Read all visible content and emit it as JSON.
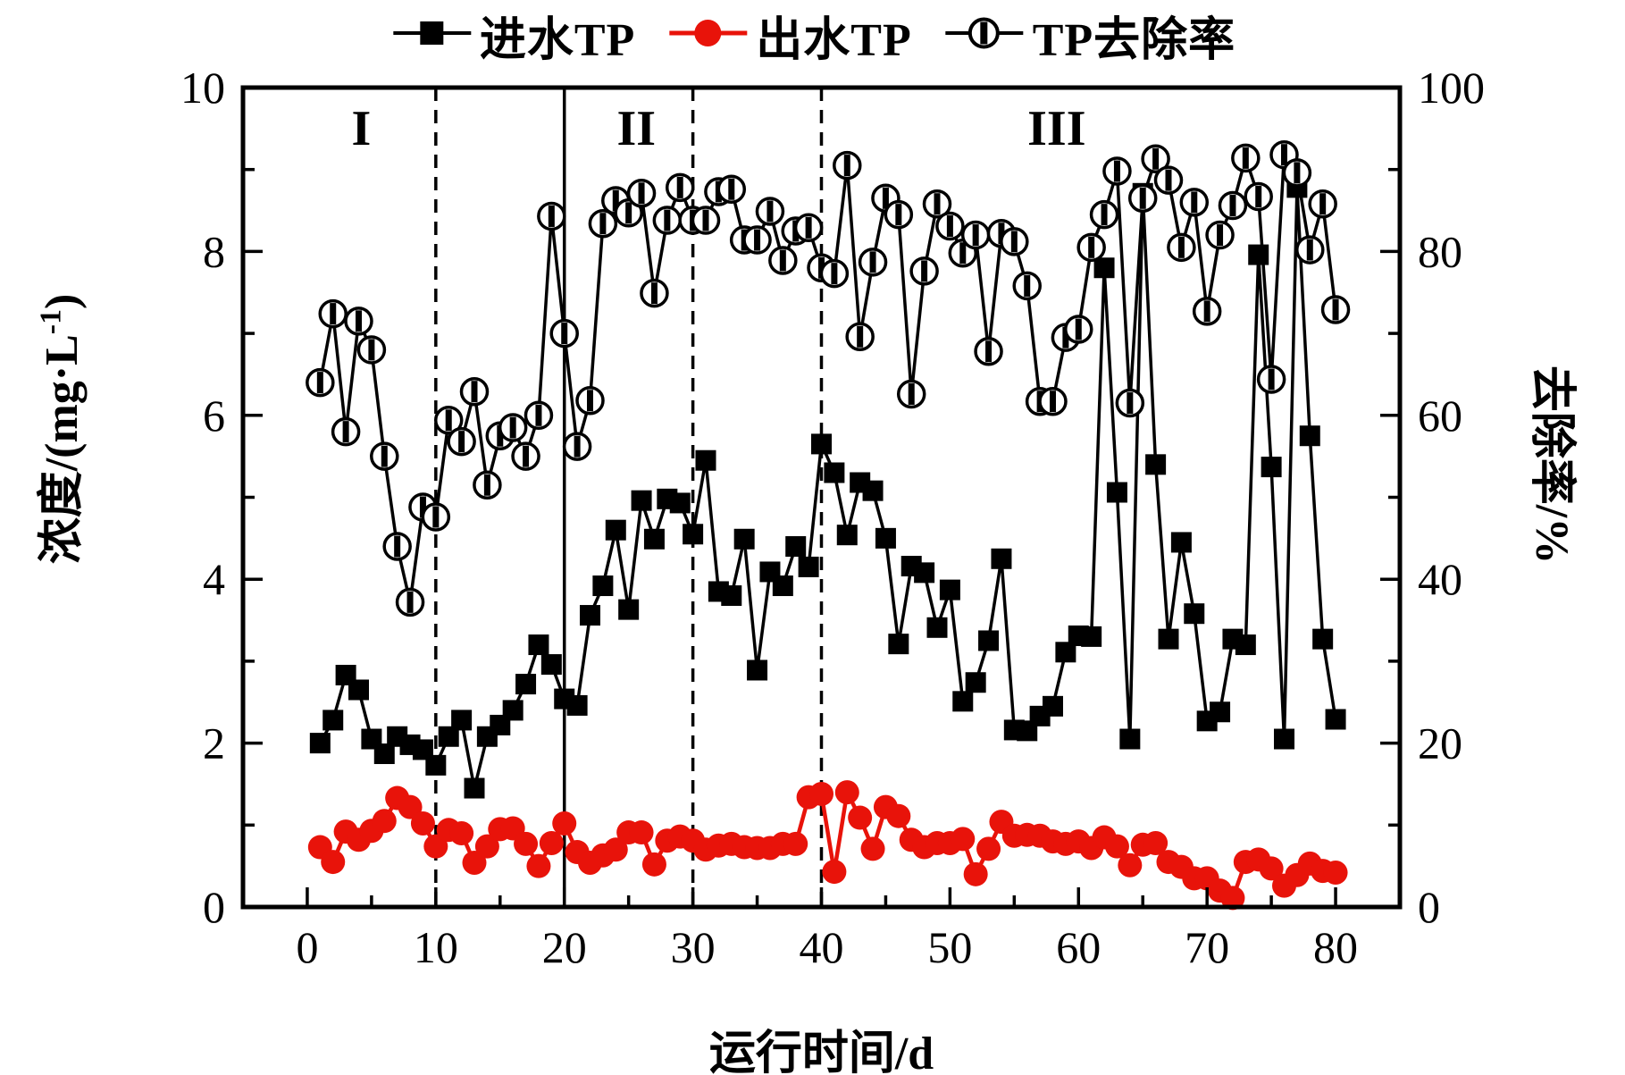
{
  "chart_data": {
    "type": "line",
    "title": "",
    "xlabel": "运行时间/d",
    "ylabel_left": {
      "main": "浓度/(mg·L",
      "sup": "-1",
      "close": ")"
    },
    "ylabel_right": "去除率/%",
    "xlim": [
      -5,
      85
    ],
    "ylim_left": [
      0,
      10
    ],
    "ylim_right": [
      0,
      100
    ],
    "grid": false,
    "legend_position": "top-center",
    "x_start": 1,
    "x_step": 1,
    "xticks_major": [
      0,
      10,
      20,
      30,
      40,
      50,
      60,
      70,
      80
    ],
    "xticks_minor": [
      5,
      15,
      25,
      35,
      45,
      55,
      65,
      75
    ],
    "yticks_left_major": [
      0,
      2,
      4,
      6,
      8,
      10
    ],
    "yticks_left_minor": [
      1,
      3,
      5,
      7,
      9
    ],
    "yticks_right_major": [
      0,
      20,
      40,
      60,
      80,
      100
    ],
    "yticks_right_minor": [
      10,
      30,
      50,
      70,
      90
    ],
    "phase_dividers": [
      {
        "x": 10,
        "style": "dashed"
      },
      {
        "x": 20,
        "style": "solid"
      },
      {
        "x": 30,
        "style": "dashed"
      },
      {
        "x": 40,
        "style": "dashed"
      }
    ],
    "phase_labels": [
      {
        "text": "I",
        "x": 4.2,
        "y": 9.3
      },
      {
        "text": "II",
        "x": 25.6,
        "y": 9.3
      },
      {
        "text": "III",
        "x": 58.3,
        "y": 9.3
      }
    ],
    "series": [
      {
        "name": "进水TP",
        "axis": "left",
        "color": "#000000",
        "marker": "filled-square",
        "values": [
          2.0,
          2.28,
          2.83,
          2.65,
          2.05,
          1.87,
          2.08,
          1.98,
          1.92,
          1.73,
          2.08,
          2.28,
          1.45,
          2.08,
          2.22,
          2.4,
          2.72,
          3.2,
          2.96,
          2.54,
          2.46,
          3.56,
          3.92,
          4.6,
          3.63,
          4.96,
          4.49,
          4.98,
          4.93,
          4.55,
          5.45,
          3.85,
          3.8,
          4.49,
          2.89,
          4.09,
          3.92,
          4.4,
          4.15,
          5.65,
          5.3,
          4.54,
          5.18,
          5.08,
          4.5,
          3.21,
          4.16,
          4.08,
          3.41,
          3.87,
          2.51,
          2.74,
          3.25,
          4.25,
          2.16,
          2.15,
          2.33,
          2.45,
          3.11,
          3.31,
          3.3,
          7.8,
          5.06,
          2.05,
          8.71,
          5.4,
          3.27,
          4.45,
          3.58,
          2.27,
          2.38,
          3.27,
          3.2,
          7.96,
          5.37,
          2.05,
          8.78,
          5.75,
          3.27,
          2.29
        ]
      },
      {
        "name": "出水TP",
        "axis": "left",
        "color": "#e8130a",
        "marker": "filled-circle",
        "values": [
          0.73,
          0.55,
          0.92,
          0.82,
          0.93,
          1.05,
          1.33,
          1.22,
          1.02,
          0.74,
          0.94,
          0.9,
          0.54,
          0.74,
          0.95,
          0.96,
          0.77,
          0.5,
          0.78,
          1.02,
          0.67,
          0.54,
          0.63,
          0.7,
          0.91,
          0.91,
          0.52,
          0.81,
          0.86,
          0.81,
          0.7,
          0.75,
          0.77,
          0.73,
          0.72,
          0.72,
          0.77,
          0.77,
          1.34,
          1.38,
          0.43,
          1.4,
          1.09,
          0.71,
          1.22,
          1.11,
          0.82,
          0.73,
          0.78,
          0.78,
          0.83,
          0.4,
          0.71,
          1.04,
          0.87,
          0.88,
          0.87,
          0.8,
          0.77,
          0.8,
          0.72,
          0.85,
          0.74,
          0.51,
          0.76,
          0.78,
          0.55,
          0.49,
          0.35,
          0.35,
          0.2,
          0.11,
          0.55,
          0.58,
          0.47,
          0.26,
          0.39,
          0.53,
          0.44,
          0.42
        ]
      },
      {
        "name": "TP去除率",
        "axis": "right",
        "color": "#000000",
        "marker": "half-filled-circle",
        "values": [
          64.0,
          72.4,
          58.0,
          71.5,
          68.0,
          55.0,
          44.0,
          37.2,
          48.8,
          47.6,
          59.4,
          56.8,
          62.9,
          51.5,
          57.5,
          58.5,
          55.0,
          60.0,
          84.3,
          70.0,
          56.2,
          61.8,
          83.4,
          86.2,
          84.7,
          87.1,
          74.9,
          83.8,
          87.8,
          83.8,
          83.8,
          87.3,
          87.6,
          81.4,
          81.4,
          84.9,
          78.9,
          82.5,
          82.9,
          78.0,
          77.3,
          90.5,
          69.6,
          78.7,
          86.5,
          84.5,
          62.6,
          77.6,
          85.8,
          83.1,
          79.8,
          82.0,
          67.8,
          82.2,
          81.2,
          75.8,
          61.7,
          61.7,
          69.5,
          70.5,
          80.5,
          84.5,
          89.8,
          61.5,
          86.5,
          91.3,
          88.7,
          80.5,
          86.0,
          72.7,
          82.0,
          85.6,
          91.4,
          86.7,
          64.4,
          91.8,
          89.6,
          80.2,
          85.8,
          72.9
        ]
      }
    ]
  }
}
